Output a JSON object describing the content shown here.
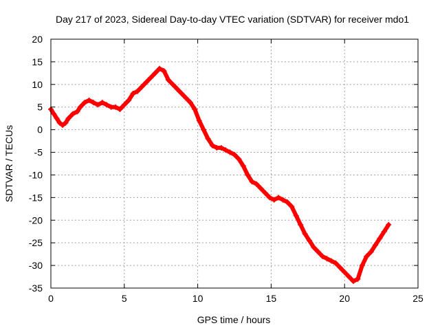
{
  "chart_data": {
    "type": "scatter",
    "title": "Day 217 of 2023, Sidereal Day-to-day VTEC variation (SDTVAR) for receiver mdo1",
    "xlabel": "GPS time / hours",
    "ylabel": "SDTVAR / TECUs",
    "xlim": [
      0,
      25
    ],
    "ylim": [
      -35,
      20
    ],
    "xticks": [
      0,
      5,
      10,
      15,
      20,
      25
    ],
    "yticks": [
      -35,
      -30,
      -25,
      -20,
      -15,
      -10,
      -5,
      0,
      5,
      10,
      15,
      20
    ],
    "grid": true,
    "marker": "+",
    "color": "#ff0000",
    "series": [
      {
        "name": "mdo1",
        "x": [
          0.0,
          0.2,
          0.4,
          0.6,
          0.8,
          1.0,
          1.2,
          1.5,
          1.8,
          2.0,
          2.3,
          2.6,
          2.9,
          3.2,
          3.5,
          3.8,
          4.1,
          4.4,
          4.7,
          5.0,
          5.3,
          5.6,
          5.9,
          6.2,
          6.5,
          6.8,
          7.1,
          7.4,
          7.7,
          8.0,
          8.3,
          8.6,
          8.9,
          9.2,
          9.5,
          9.8,
          10.1,
          10.4,
          10.7,
          11.0,
          11.3,
          11.6,
          11.9,
          12.2,
          12.5,
          12.8,
          13.1,
          13.4,
          13.7,
          14.0,
          14.3,
          14.6,
          14.9,
          15.2,
          15.5,
          15.8,
          16.1,
          16.4,
          16.7,
          17.0,
          17.3,
          17.6,
          17.9,
          18.2,
          18.5,
          18.8,
          19.1,
          19.4,
          19.7,
          20.0,
          20.3,
          20.6,
          20.9,
          21.2,
          21.5,
          21.8,
          22.1,
          22.4,
          22.7,
          23.0
        ],
        "y": [
          4.5,
          3.5,
          2.5,
          1.5,
          1.0,
          1.5,
          2.5,
          3.5,
          4.0,
          5.0,
          6.0,
          6.5,
          6.0,
          5.5,
          6.0,
          5.5,
          5.0,
          5.0,
          4.5,
          5.5,
          6.5,
          8.0,
          8.5,
          9.5,
          10.5,
          11.5,
          12.5,
          13.5,
          13.0,
          11.0,
          10.0,
          9.0,
          8.0,
          7.0,
          6.0,
          4.5,
          2.0,
          0.0,
          -2.0,
          -3.5,
          -4.0,
          -4.0,
          -4.5,
          -5.0,
          -5.5,
          -6.5,
          -8.0,
          -10.0,
          -11.5,
          -12.0,
          -13.0,
          -14.0,
          -15.0,
          -15.5,
          -15.0,
          -15.5,
          -16.0,
          -17.0,
          -19.0,
          -21.0,
          -23.0,
          -24.5,
          -26.0,
          -27.0,
          -28.0,
          -28.5,
          -29.0,
          -29.5,
          -30.5,
          -31.5,
          -32.5,
          -33.5,
          -33.0,
          -30.0,
          -28.0,
          -27.0,
          -25.5,
          -24.0,
          -22.5,
          -21.0
        ]
      }
    ]
  }
}
